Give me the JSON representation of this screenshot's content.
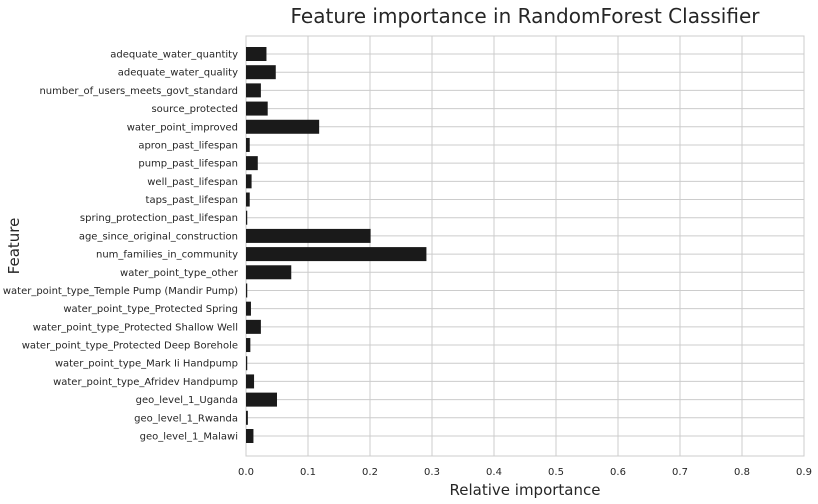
{
  "chart_data": {
    "type": "bar",
    "orientation": "horizontal",
    "title": "Feature importance in RandomForest Classifier",
    "xlabel": "Relative importance",
    "ylabel": "Feature",
    "xlim": [
      0,
      0.9
    ],
    "xticks": [
      "0.0",
      "0.1",
      "0.2",
      "0.3",
      "0.4",
      "0.5",
      "0.6",
      "0.7",
      "0.8",
      "0.9"
    ],
    "grid": true,
    "categories": [
      "adequate_water_quantity",
      "adequate_water_quality",
      "number_of_users_meets_govt_standard",
      "source_protected",
      "water_point_improved",
      "apron_past_lifespan",
      "pump_past_lifespan",
      "well_past_lifespan",
      "taps_past_lifespan",
      "spring_protection_past_lifespan",
      "age_since_original_construction",
      "num_families_in_community",
      "water_point_type_other",
      "water_point_type_Temple Pump (Mandir Pump)",
      "water_point_type_Protected Spring",
      "water_point_type_Protected Shallow Well",
      "water_point_type_Protected Deep Borehole",
      "water_point_type_Mark Ii Handpump",
      "water_point_type_Afridev Handpump",
      "geo_level_1_Uganda",
      "geo_level_1_Rwanda",
      "geo_level_1_Malawi"
    ],
    "values": [
      0.033,
      0.048,
      0.024,
      0.035,
      0.118,
      0.006,
      0.019,
      0.009,
      0.006,
      0.002,
      0.201,
      0.291,
      0.073,
      0.002,
      0.008,
      0.024,
      0.007,
      0.002,
      0.013,
      0.05,
      0.003,
      0.012
    ],
    "colors": {
      "bar": "#1a1a1a",
      "grid": "#cccccc",
      "background": "#ffffff",
      "text": "#262626"
    }
  }
}
